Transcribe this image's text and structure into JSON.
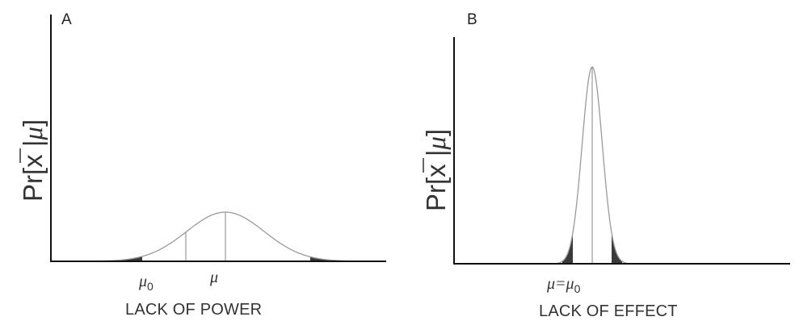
{
  "panels": [
    {
      "letter": "A",
      "ylabel": {
        "prefix": "Pr[",
        "xbar": "x",
        "sep": " |",
        "mu": "μ",
        "suffix": "]"
      },
      "caption": "LACK OF POWER",
      "labels": {
        "mu0": "μ",
        "mu0_sub": "0",
        "mu": "μ"
      },
      "curve": "normal density, wide (low power)"
    },
    {
      "letter": "B",
      "ylabel": {
        "prefix": "Pr[",
        "xbar": "x",
        "sep": " |",
        "mu": "μ",
        "suffix": "]"
      },
      "caption": "LACK OF EFFECT",
      "labels": {
        "mu_eq_mu0": "μ=μ",
        "mu0_sub": "0"
      },
      "curve": "normal density, narrow (high precision, no effect)"
    }
  ],
  "colors": {
    "axis": "#111111",
    "curve": "#9a9a9a",
    "tail_shading": "#3a3a3a",
    "text": "#333333"
  }
}
